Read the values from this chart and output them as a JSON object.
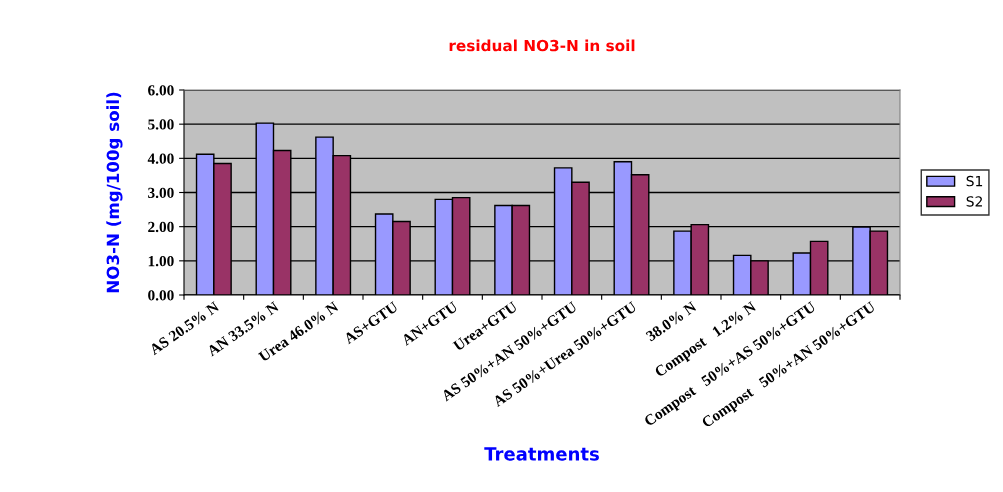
{
  "chart_data": {
    "type": "bar",
    "title": "residual NO3-N in soil",
    "xlabel": "Treatments",
    "ylabel": "NO3-N (mg/100g soil)",
    "categories": [
      "AS 20.5% N",
      "AN 33.5% N",
      "Urea 46.0% N",
      "AS+GTU",
      "AN+GTU",
      "Urea+GTU",
      "AS 50%+AN 50%+GTU",
      "AS 50%+Urea 50%+GTU",
      "38.0% N",
      "Compost   1.2% N",
      "Compost   50%+AS 50%+GTU",
      "Compost   50%+AN 50%+GTU"
    ],
    "series": [
      {
        "name": "S1",
        "color": "#9999ff",
        "values": [
          4.12,
          5.03,
          4.62,
          2.37,
          2.8,
          2.62,
          3.72,
          3.9,
          1.87,
          1.16,
          1.23,
          1.99
        ]
      },
      {
        "name": "S2",
        "color": "#993366",
        "values": [
          3.85,
          4.23,
          4.08,
          2.15,
          2.85,
          2.62,
          3.3,
          3.52,
          2.06,
          1.0,
          1.57,
          1.87
        ]
      }
    ],
    "ylim": [
      0,
      6
    ],
    "yticks": [
      {
        "value": 0,
        "label": "0.00"
      },
      {
        "value": 1,
        "label": "1.00"
      },
      {
        "value": 2,
        "label": "2.00"
      },
      {
        "value": 3,
        "label": "3.00"
      },
      {
        "value": 4,
        "label": "4.00"
      },
      {
        "value": 5,
        "label": "5.00"
      },
      {
        "value": 6,
        "label": "6.00"
      }
    ],
    "grid": "y",
    "legend": "right"
  }
}
